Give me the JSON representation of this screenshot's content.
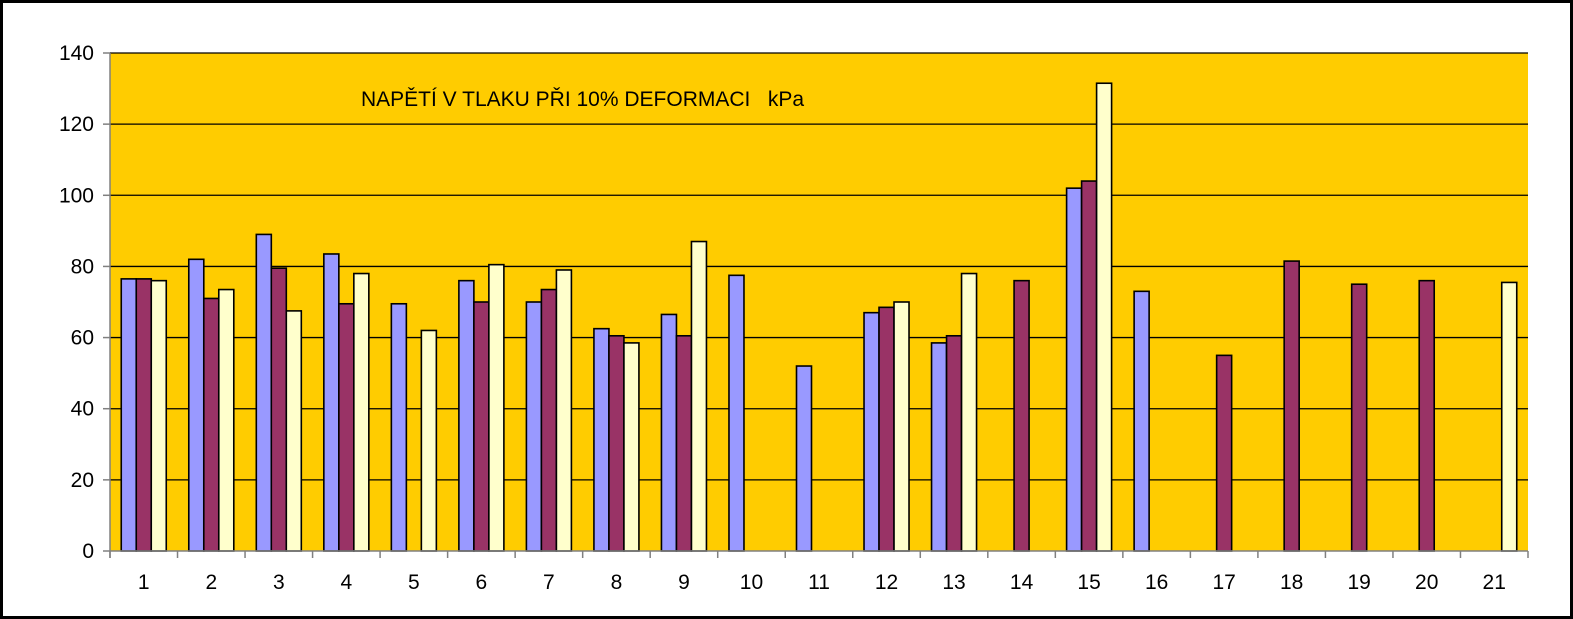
{
  "chart_data": {
    "type": "bar",
    "title": "NAPĚTÍ V TLAKU PŘI 10% DEFORMACI   kPa",
    "xlabel": "",
    "ylabel": "",
    "ylim": [
      0,
      140
    ],
    "yticks": [
      "0",
      "20",
      "40",
      "60",
      "80",
      "100",
      "120",
      "140"
    ],
    "grid": true,
    "legend": "none",
    "categories": [
      "1",
      "2",
      "3",
      "4",
      "5",
      "6",
      "7",
      "8",
      "9",
      "10",
      "11",
      "12",
      "13",
      "14",
      "15",
      "16",
      "17",
      "18",
      "19",
      "20",
      "21"
    ],
    "series": [
      {
        "color": "#9999ff",
        "values": [
          76.5,
          82,
          89,
          83.5,
          69.5,
          76,
          70,
          62.5,
          66.5,
          77.5,
          52,
          67,
          58.5,
          null,
          102,
          73,
          null,
          null,
          null,
          null,
          null
        ]
      },
      {
        "color": "#993366",
        "values": [
          76.5,
          71,
          79.5,
          69.5,
          null,
          70,
          73.5,
          60.5,
          60.5,
          null,
          null,
          68.5,
          60.5,
          76,
          104,
          null,
          55,
          81.5,
          75,
          76,
          null
        ]
      },
      {
        "color": "#ffffcc",
        "values": [
          76,
          73.5,
          67.5,
          78,
          62,
          80.5,
          79,
          58.5,
          87,
          null,
          null,
          70,
          78,
          null,
          131.5,
          null,
          null,
          null,
          null,
          null,
          75.5
        ]
      }
    ],
    "plot_background": "#ffcc00",
    "axis_color": "#808080",
    "gridline_color": "#000000"
  }
}
